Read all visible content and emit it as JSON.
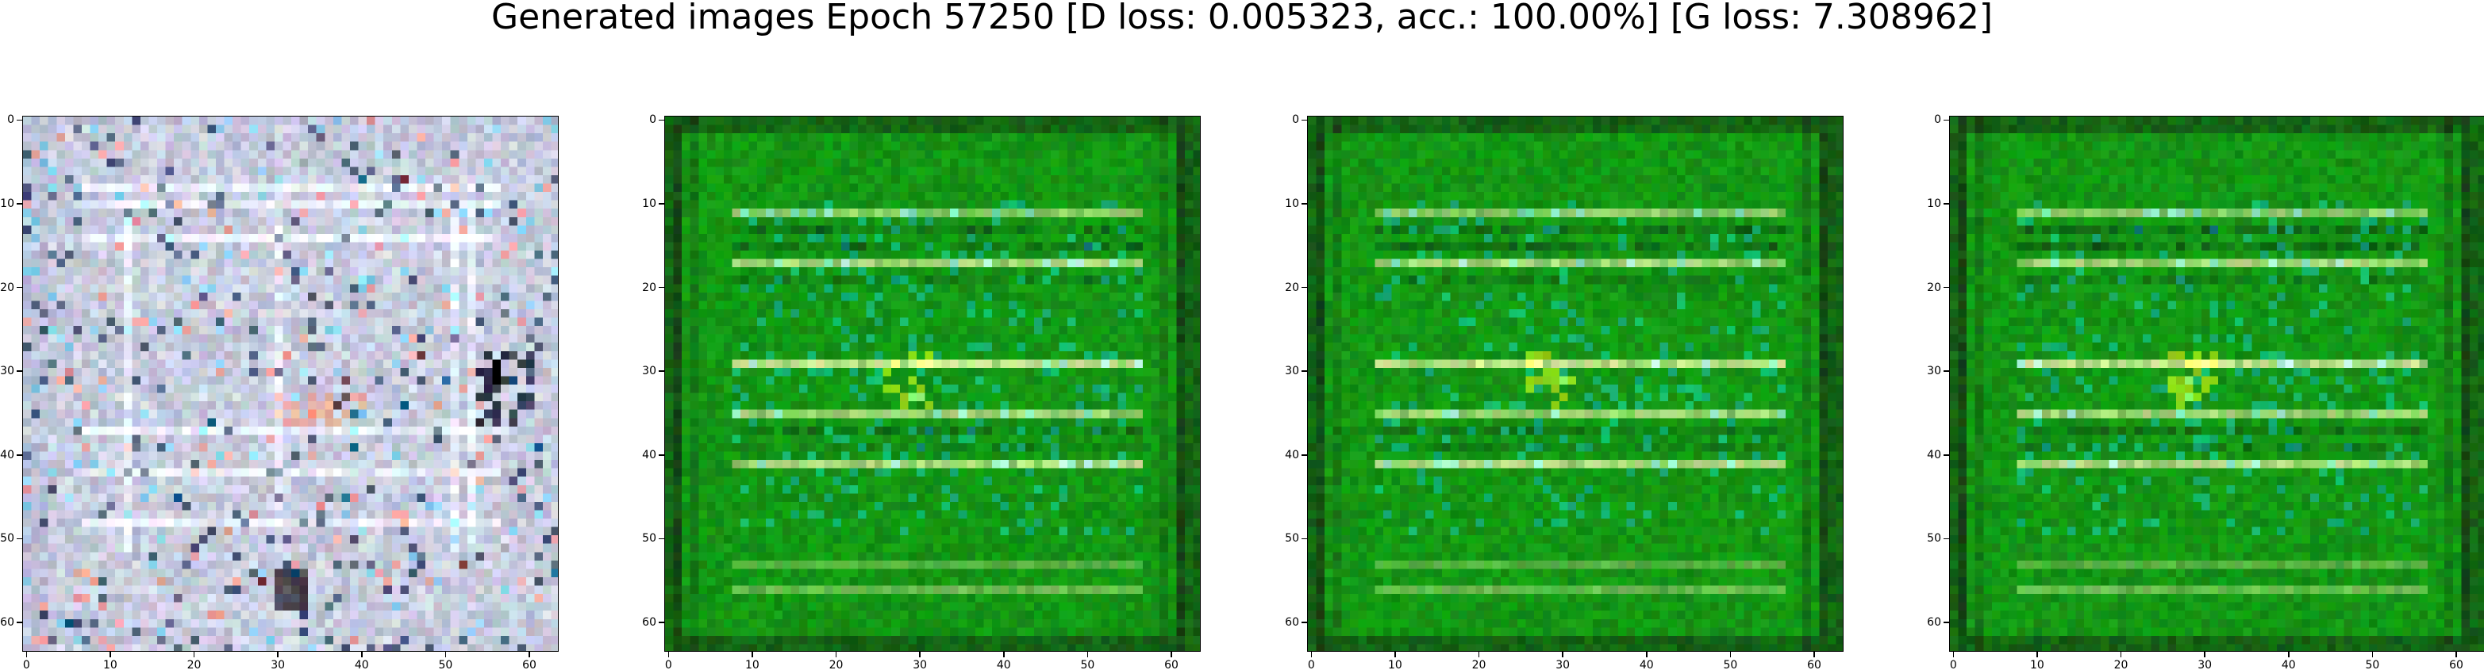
{
  "figure": {
    "title": "Generated images Epoch 57250 [D loss: 0.005323, acc.: 100.00%] [G loss: 7.308962]"
  },
  "panels": [
    {
      "name": "generated-image-1",
      "scheme": "pale",
      "x_ticks": [
        "0",
        "10",
        "20",
        "30",
        "40",
        "50",
        "60"
      ],
      "y_ticks": [
        "0",
        "10",
        "20",
        "30",
        "40",
        "50",
        "60"
      ]
    },
    {
      "name": "generated-image-2",
      "scheme": "green",
      "x_ticks": [
        "0",
        "10",
        "20",
        "30",
        "40",
        "50",
        "60"
      ],
      "y_ticks": [
        "0",
        "10",
        "20",
        "30",
        "40",
        "50",
        "60"
      ]
    },
    {
      "name": "generated-image-3",
      "scheme": "green",
      "x_ticks": [
        "0",
        "10",
        "20",
        "30",
        "40",
        "50",
        "60"
      ],
      "y_ticks": [
        "0",
        "10",
        "20",
        "30",
        "40",
        "50",
        "60"
      ]
    },
    {
      "name": "generated-image-4",
      "scheme": "green",
      "x_ticks": [
        "0",
        "10",
        "20",
        "30",
        "40",
        "50",
        "60"
      ],
      "y_ticks": [
        "0",
        "10",
        "20",
        "30",
        "40",
        "50",
        "60"
      ]
    }
  ],
  "colors": {
    "pale_base": "#c8ccd8",
    "green_base": "#1f9a1f",
    "highlight": "#f4f7c8",
    "dark": "#0b3a0b"
  }
}
